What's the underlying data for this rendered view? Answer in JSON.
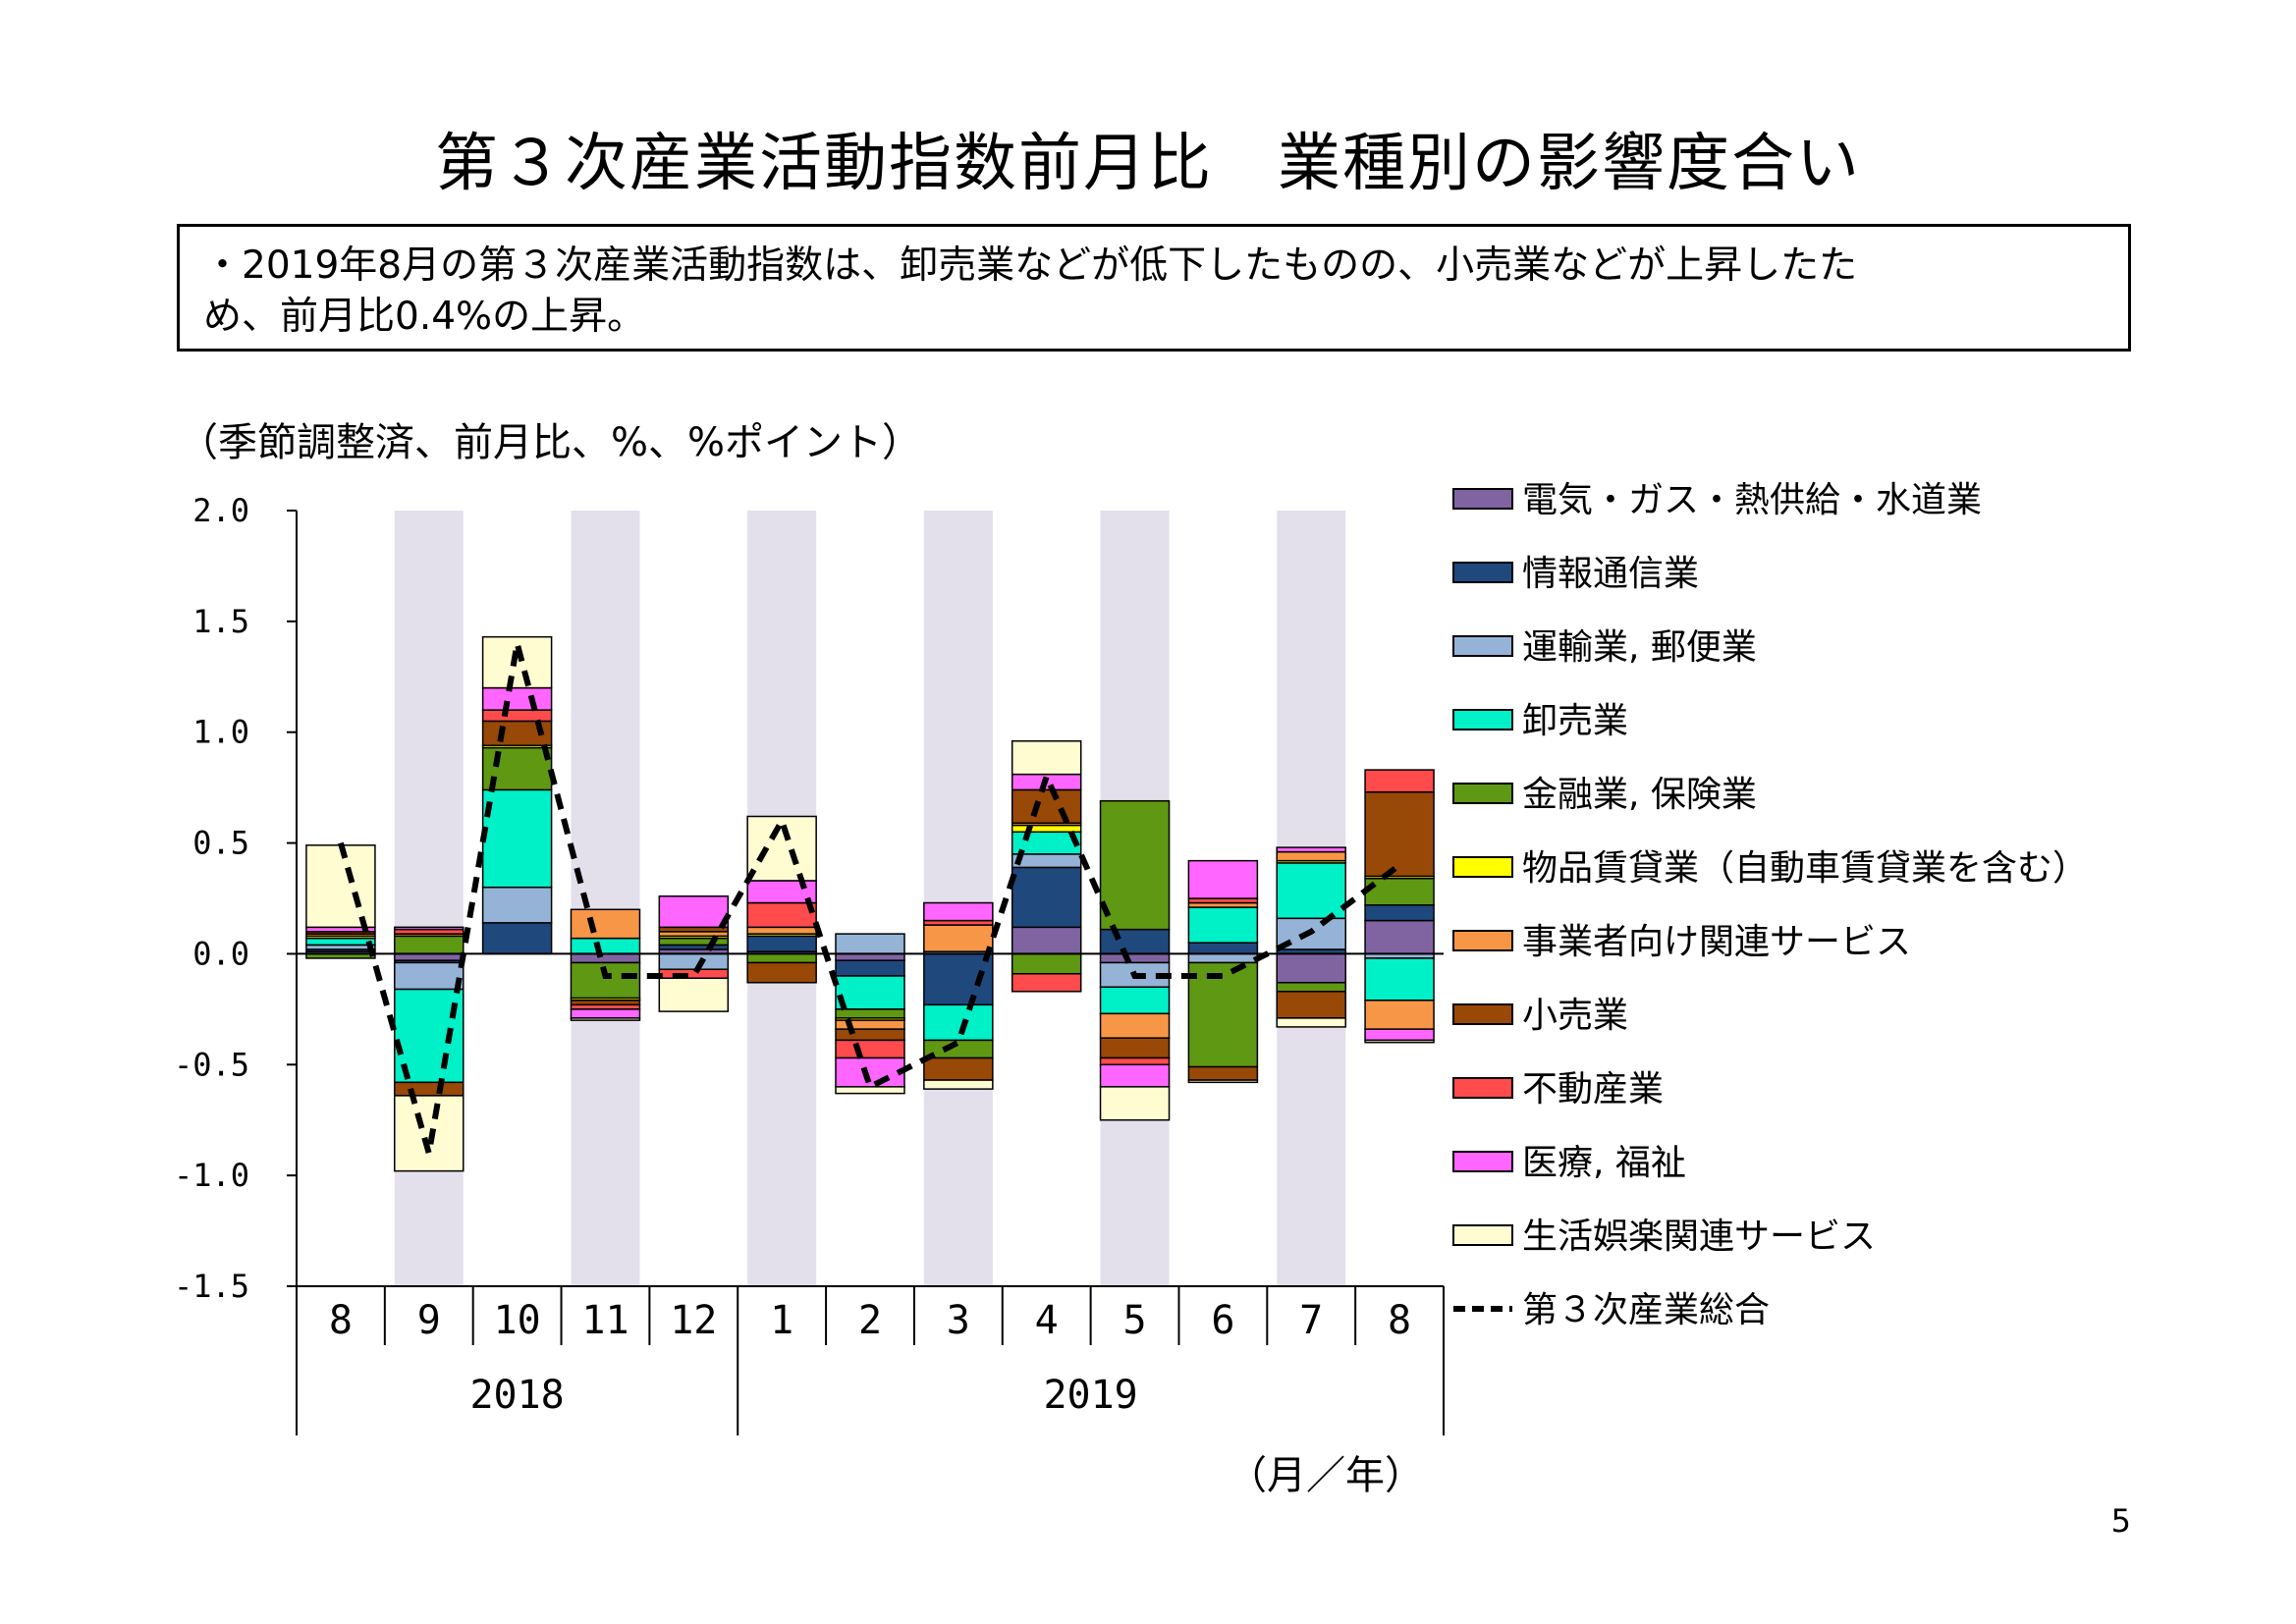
{
  "title": "第３次産業活動指数前月比　業種別の影響度合い",
  "summary": {
    "line1": "・2019年8月の第３次産業活動指数は、卸売業などが低下したものの、小売業などが上昇したた",
    "line2": "め、前月比0.4%の上昇。"
  },
  "unit_note": "（季節調整済、前月比、%、%ポイント）",
  "x_unit_label": "（月／年）",
  "page_number": "5",
  "chart_data": {
    "type": "bar",
    "stacked": true,
    "ylim": [
      -1.5,
      2.0
    ],
    "yticks": [
      "2.0",
      "1.5",
      "1.0",
      "0.5",
      "0.0",
      "-0.5",
      "-1.0",
      "-1.5"
    ],
    "ytick_values": [
      2.0,
      1.5,
      1.0,
      0.5,
      0.0,
      -0.5,
      -1.0,
      -1.5
    ],
    "categories": [
      "8",
      "9",
      "10",
      "11",
      "12",
      "1",
      "2",
      "3",
      "4",
      "5",
      "6",
      "7",
      "8"
    ],
    "year_groups": [
      {
        "label": "2018",
        "start": 0,
        "end": 4
      },
      {
        "label": "2019",
        "start": 5,
        "end": 12
      }
    ],
    "shaded_bands": [
      1,
      3,
      5,
      7,
      9,
      11
    ],
    "shade_color": "#e3e0ec",
    "legend_position": "right",
    "series": [
      {
        "name": "電気・ガス・熱供給・水道業",
        "color": "#8064a2",
        "values": [
          0.01,
          -0.03,
          0.0,
          -0.04,
          0.02,
          0.01,
          -0.03,
          0.0,
          0.12,
          -0.04,
          0.0,
          -0.13,
          0.15
        ]
      },
      {
        "name": "情報通信業",
        "color": "#1f497d",
        "values": [
          0.01,
          -0.01,
          0.14,
          0.0,
          0.02,
          0.07,
          -0.07,
          -0.23,
          0.27,
          0.11,
          0.05,
          0.02,
          0.07
        ]
      },
      {
        "name": "運輸業, 郵便業",
        "color": "#95b3d7",
        "values": [
          0.02,
          -0.12,
          0.16,
          0.0,
          -0.07,
          0.0,
          0.09,
          0.01,
          0.06,
          -0.11,
          -0.04,
          0.14,
          -0.02
        ]
      },
      {
        "name": "卸売業",
        "color": "#00f0c8",
        "values": [
          0.03,
          -0.42,
          0.44,
          0.07,
          0.0,
          0.0,
          -0.15,
          -0.16,
          0.1,
          -0.12,
          0.16,
          0.25,
          -0.19
        ]
      },
      {
        "name": "金融業, 保険業",
        "color": "#5f9812",
        "values": [
          -0.02,
          0.08,
          0.19,
          -0.16,
          0.03,
          -0.04,
          -0.04,
          -0.08,
          -0.09,
          0.58,
          -0.47,
          -0.04,
          0.12
        ]
      },
      {
        "name": "物品賃貸業（自動車賃貸業を含む）",
        "color": "#ffff00",
        "values": [
          0.01,
          0.0,
          0.01,
          -0.01,
          0.01,
          0.01,
          -0.01,
          0.0,
          0.03,
          0.0,
          0.0,
          0.01,
          0.01
        ]
      },
      {
        "name": "事業者向け関連サービス",
        "color": "#f79646",
        "values": [
          0.01,
          0.01,
          0.0,
          0.13,
          0.02,
          0.03,
          -0.04,
          0.12,
          0.01,
          -0.11,
          0.02,
          0.04,
          -0.13
        ]
      },
      {
        "name": "小売業",
        "color": "#984807",
        "values": [
          0.01,
          -0.06,
          0.11,
          -0.02,
          0.02,
          -0.09,
          -0.05,
          -0.1,
          0.15,
          -0.09,
          -0.06,
          -0.12,
          0.38
        ]
      },
      {
        "name": "不動産業",
        "color": "#ff4b4b",
        "values": [
          0.0,
          0.02,
          0.05,
          -0.02,
          -0.04,
          0.11,
          -0.08,
          0.02,
          -0.08,
          -0.03,
          0.02,
          0.0,
          0.1
        ]
      },
      {
        "name": "医療, 福祉",
        "color": "#ff66ff",
        "values": [
          0.02,
          0.01,
          0.1,
          -0.04,
          0.14,
          0.1,
          -0.13,
          0.08,
          0.07,
          -0.1,
          0.17,
          0.02,
          -0.05
        ]
      },
      {
        "name": "生活娯楽関連サービス",
        "color": "#fffcd2",
        "values": [
          0.37,
          -0.34,
          0.23,
          -0.01,
          -0.15,
          0.29,
          -0.03,
          -0.04,
          0.15,
          -0.15,
          -0.01,
          -0.04,
          -0.01
        ]
      }
    ],
    "line": {
      "name": "第３次産業総合",
      "style": "dashed",
      "color": "#000000",
      "values": [
        0.5,
        -0.9,
        1.4,
        -0.1,
        -0.1,
        0.6,
        -0.6,
        -0.4,
        0.8,
        -0.1,
        -0.1,
        0.1,
        0.4
      ]
    }
  }
}
